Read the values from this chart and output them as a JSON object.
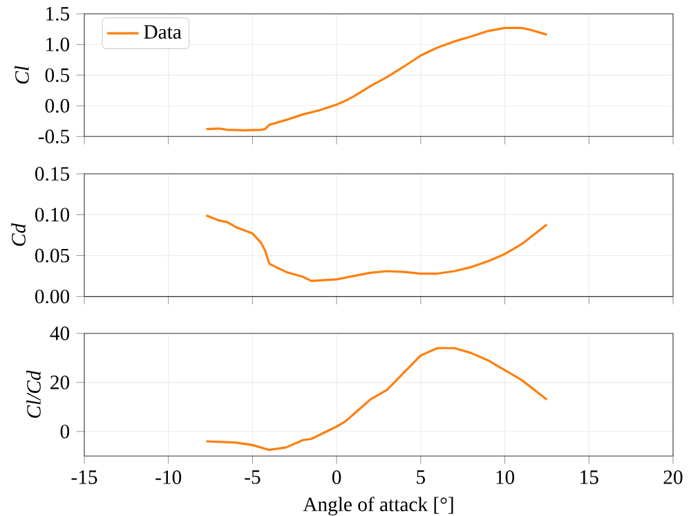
{
  "chart_data": [
    {
      "type": "line",
      "ylabel": "Cl",
      "xlim": [
        -15,
        20
      ],
      "xticks": [
        -15,
        -10,
        -5,
        0,
        5,
        10,
        15,
        20
      ],
      "ylim": [
        -0.5,
        1.5
      ],
      "yticks": [
        -0.5,
        {
          "value": 0,
          "label": "0.0"
        },
        0.5,
        {
          "value": 1,
          "label": "1.0"
        },
        1.5
      ],
      "tick_labels": "y",
      "grid": true,
      "legend": "top left",
      "x": [
        -7.75,
        -7,
        -6.5,
        -5.5,
        -4.5,
        -4.25,
        -4,
        -3,
        -2,
        -1,
        0,
        0.5,
        1,
        2,
        3,
        4,
        5,
        6,
        7,
        8,
        9,
        10,
        11,
        11.5,
        12.5
      ],
      "series": [
        {
          "name": "Data",
          "color": "#ff7f0e",
          "values": [
            -0.38,
            -0.37,
            -0.39,
            -0.4,
            -0.39,
            -0.38,
            -0.31,
            -0.23,
            -0.14,
            -0.07,
            0.02,
            0.08,
            0.15,
            0.32,
            0.47,
            0.64,
            0.82,
            0.95,
            1.05,
            1.13,
            1.22,
            1.27,
            1.27,
            1.24,
            1.16
          ]
        }
      ]
    },
    {
      "type": "line",
      "ylabel": "Cd",
      "xlim": [
        -15,
        20
      ],
      "xticks": [
        -15,
        -10,
        -5,
        0,
        5,
        10,
        15,
        20
      ],
      "ylim": [
        0,
        0.15
      ],
      "yticks": [
        {
          "value": 0,
          "label": "0.00"
        },
        0.05,
        {
          "value": 0.1,
          "label": "0.10"
        },
        0.15
      ],
      "tick_labels": "y",
      "grid": true,
      "x": [
        -7.75,
        -7,
        -6.5,
        -6,
        -5,
        -4.5,
        -4.25,
        -4,
        -3,
        -2,
        -1.5,
        0,
        1,
        2,
        3,
        4,
        5,
        6,
        7,
        8,
        9,
        10,
        11,
        12.5
      ],
      "series": [
        {
          "color": "#ff7f0e",
          "values": [
            0.099,
            0.093,
            0.091,
            0.085,
            0.077,
            0.066,
            0.056,
            0.04,
            0.03,
            0.024,
            0.019,
            0.021,
            0.025,
            0.029,
            0.031,
            0.03,
            0.028,
            0.028,
            0.031,
            0.036,
            0.043,
            0.052,
            0.064,
            0.088
          ]
        }
      ]
    },
    {
      "type": "line",
      "xlabel": "Angle of attack [°]",
      "ylabel": "Cl/Cd",
      "xlim": [
        -15,
        20
      ],
      "xticks": [
        -15,
        -10,
        -5,
        0,
        5,
        10,
        15,
        20
      ],
      "ylim": [
        -10,
        40
      ],
      "yticks": [
        0,
        20,
        40
      ],
      "grid": true,
      "x": [
        -7.75,
        -6,
        -5,
        -4,
        -3,
        -2,
        -1.5,
        0,
        0.5,
        1,
        2,
        3,
        4,
        5,
        6,
        7,
        8,
        9,
        10,
        11,
        12.5
      ],
      "series": [
        {
          "color": "#ff7f0e",
          "values": [
            -4,
            -4.5,
            -5.5,
            -7.5,
            -6.5,
            -3.5,
            -3,
            2,
            4,
            7,
            13,
            17,
            24,
            31,
            34,
            34,
            32,
            29,
            25,
            21,
            13
          ]
        }
      ]
    }
  ]
}
